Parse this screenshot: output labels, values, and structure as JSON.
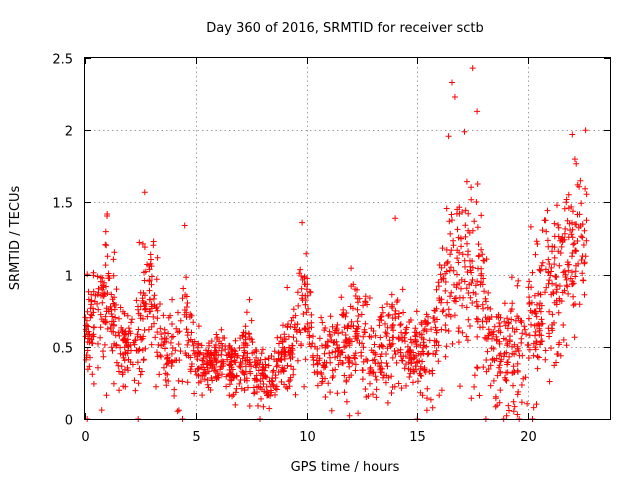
{
  "chart_data": {
    "type": "scatter",
    "title": "Day 360 of 2016, SRMTID for receiver sctb",
    "xlabel": "GPS time / hours",
    "ylabel": "SRMTID / TECUs",
    "xlim": [
      0,
      23.7
    ],
    "ylim": [
      0,
      2.5
    ],
    "xticks": [
      0,
      5,
      10,
      15,
      20
    ],
    "xtick_labels": [
      "0",
      "5",
      "10",
      "15",
      "20"
    ],
    "yticks": [
      0,
      0.5,
      1,
      1.5,
      2,
      2.5
    ],
    "ytick_labels": [
      "0",
      "0.5",
      "1",
      "1.5",
      "2",
      "2.5"
    ],
    "grid": true,
    "marker": "+",
    "color": "#ff0000",
    "series": [
      {
        "name": "SRMTID",
        "note": "Approximate envelope of the dense point cloud (value vs time); the rendering script samples points around these profile values.",
        "profile_x": [
          0,
          0.5,
          1,
          1.5,
          2,
          2.5,
          3,
          3.5,
          4,
          4.5,
          5,
          5.5,
          6,
          6.5,
          7,
          7.5,
          8,
          8.5,
          9,
          9.5,
          10,
          10.5,
          11,
          11.5,
          12,
          12.5,
          13,
          13.5,
          14,
          14.5,
          15,
          15.5,
          16,
          16.5,
          17,
          17.5,
          18,
          18.5,
          19,
          19.5,
          20,
          20.5,
          21,
          21.5,
          22,
          22.5
        ],
        "profile_y": [
          0.6,
          0.75,
          0.85,
          0.6,
          0.45,
          0.55,
          0.9,
          0.5,
          0.4,
          0.7,
          0.4,
          0.35,
          0.4,
          0.35,
          0.35,
          0.45,
          0.3,
          0.3,
          0.45,
          0.55,
          0.7,
          0.35,
          0.45,
          0.5,
          0.55,
          0.6,
          0.4,
          0.5,
          0.55,
          0.5,
          0.45,
          0.5,
          0.7,
          1.0,
          1.1,
          1.0,
          0.8,
          0.4,
          0.4,
          0.45,
          0.55,
          0.75,
          0.85,
          1.0,
          1.2,
          1.2
        ],
        "spread": [
          0.2,
          0.3,
          0.3,
          0.2,
          0.15,
          0.3,
          0.35,
          0.15,
          0.2,
          0.35,
          0.1,
          0.1,
          0.12,
          0.15,
          0.15,
          0.2,
          0.1,
          0.12,
          0.15,
          0.2,
          0.3,
          0.12,
          0.2,
          0.2,
          0.22,
          0.25,
          0.15,
          0.2,
          0.25,
          0.2,
          0.15,
          0.2,
          0.3,
          0.45,
          0.45,
          0.4,
          0.35,
          0.2,
          0.25,
          0.25,
          0.3,
          0.35,
          0.35,
          0.35,
          0.35,
          0.35
        ],
        "highlights": [
          {
            "x": 2.7,
            "y": 1.57
          },
          {
            "x": 1.0,
            "y": 1.42
          },
          {
            "x": 4.5,
            "y": 1.34
          },
          {
            "x": 9.8,
            "y": 1.36
          },
          {
            "x": 14.0,
            "y": 1.39
          },
          {
            "x": 16.7,
            "y": 2.23
          },
          {
            "x": 17.5,
            "y": 2.43
          },
          {
            "x": 17.7,
            "y": 2.13
          },
          {
            "x": 22.0,
            "y": 1.97
          },
          {
            "x": 22.6,
            "y": 2.0
          }
        ]
      }
    ]
  }
}
